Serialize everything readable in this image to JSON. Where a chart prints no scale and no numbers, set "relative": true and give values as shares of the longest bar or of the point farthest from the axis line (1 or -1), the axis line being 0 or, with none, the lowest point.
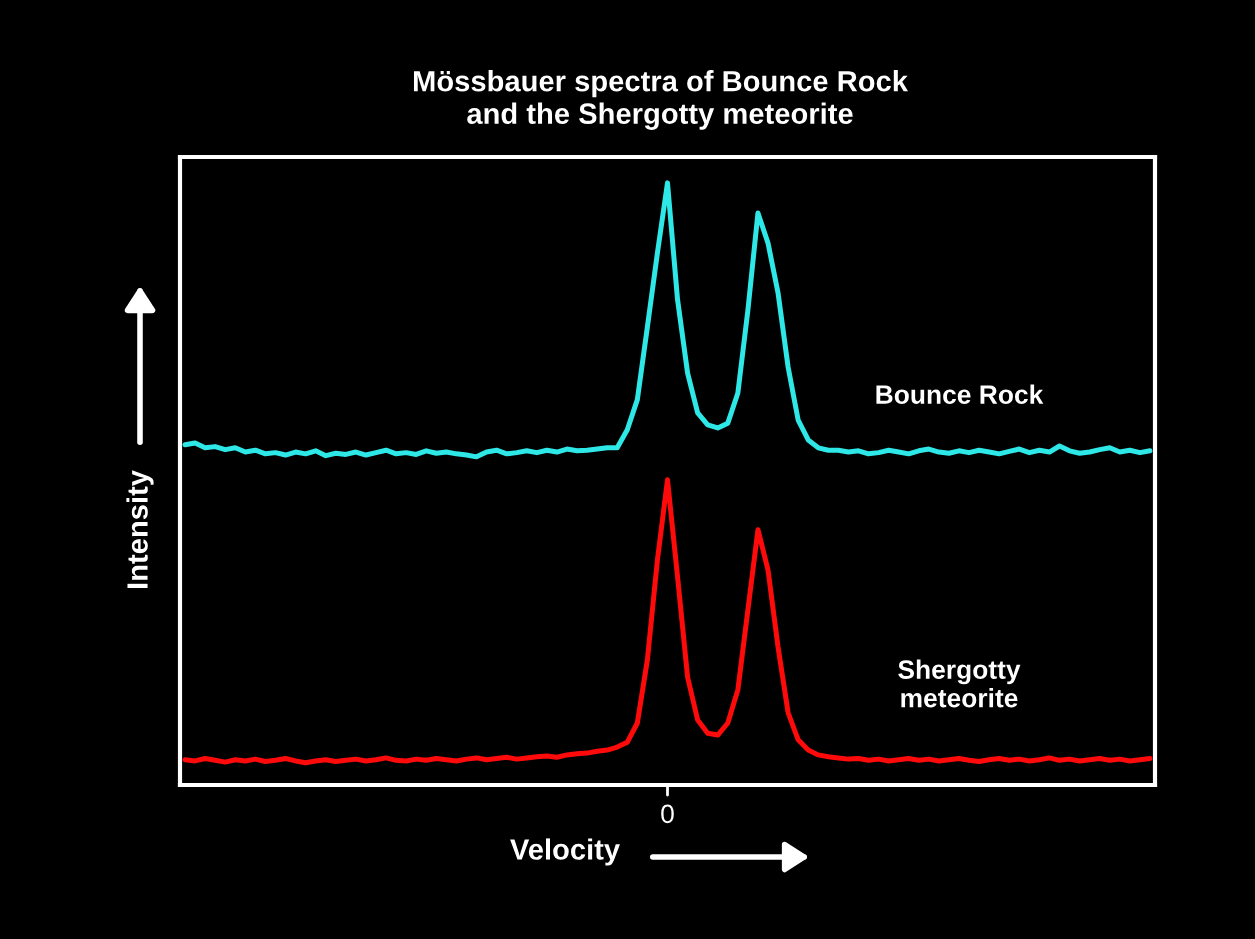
{
  "chart_data": {
    "type": "line",
    "title": "Mössbauer spectra of Bounce Rock\nand the Shergotty meteorite",
    "xlabel": "Velocity",
    "ylabel": "Intensity",
    "relative": true,
    "annotations": [
      "0"
    ],
    "categories": [
      null,
      null,
      null,
      null,
      null,
      null,
      null,
      null,
      null,
      null,
      null,
      null,
      null,
      null,
      null,
      null,
      null,
      null,
      null,
      null,
      null,
      null,
      null,
      null,
      null,
      null,
      null,
      null,
      null,
      null,
      null,
      null,
      null,
      null,
      null,
      null,
      null,
      null,
      null,
      null,
      null,
      null,
      null,
      null,
      null,
      null,
      null,
      null,
      null,
      null,
      null,
      null,
      null,
      null,
      null,
      null,
      null,
      null,
      null,
      null,
      null,
      null,
      null,
      null,
      null,
      null,
      null,
      null,
      null,
      null,
      null,
      null,
      null,
      null,
      null,
      null,
      null,
      null,
      null,
      null,
      null,
      null,
      null,
      null,
      null,
      null,
      null,
      null,
      null,
      null,
      null,
      null,
      null,
      null,
      null,
      null,
      null
    ],
    "series": [
      {
        "name": "Bounce Rock",
        "color": "#2ee8e8",
        "values": [
          0.565,
          0.568,
          0.56,
          0.562,
          0.557,
          0.56,
          0.553,
          0.556,
          0.55,
          0.552,
          0.548,
          0.553,
          0.55,
          0.555,
          0.547,
          0.551,
          0.549,
          0.553,
          0.548,
          0.552,
          0.556,
          0.55,
          0.552,
          0.549,
          0.555,
          0.551,
          0.553,
          0.55,
          0.548,
          0.545,
          0.553,
          0.556,
          0.55,
          0.552,
          0.555,
          0.552,
          0.556,
          0.553,
          0.558,
          0.555,
          0.556,
          0.558,
          0.56,
          0.56,
          0.59,
          0.64,
          0.761,
          0.884,
          1.0,
          0.806,
          0.684,
          0.618,
          0.598,
          0.593,
          0.601,
          0.651,
          0.789,
          0.95,
          0.9,
          0.817,
          0.694,
          0.606,
          0.573,
          0.56,
          0.556,
          0.556,
          0.553,
          0.555,
          0.55,
          0.552,
          0.556,
          0.553,
          0.55,
          0.555,
          0.558,
          0.553,
          0.551,
          0.555,
          0.552,
          0.556,
          0.553,
          0.55,
          0.554,
          0.558,
          0.552,
          0.556,
          0.553,
          0.563,
          0.555,
          0.551,
          0.553,
          0.557,
          0.56,
          0.553,
          0.556,
          0.552,
          0.555
        ]
      },
      {
        "name": "Shergotty\nmeteorite",
        "color": "#ff0a0a",
        "values": [
          0.042,
          0.04,
          0.044,
          0.041,
          0.038,
          0.042,
          0.04,
          0.043,
          0.039,
          0.041,
          0.044,
          0.04,
          0.037,
          0.04,
          0.042,
          0.039,
          0.041,
          0.043,
          0.04,
          0.042,
          0.045,
          0.041,
          0.04,
          0.043,
          0.041,
          0.044,
          0.042,
          0.04,
          0.043,
          0.045,
          0.042,
          0.044,
          0.046,
          0.043,
          0.045,
          0.047,
          0.048,
          0.046,
          0.05,
          0.052,
          0.053,
          0.056,
          0.058,
          0.063,
          0.071,
          0.103,
          0.208,
          0.374,
          0.507,
          0.346,
          0.179,
          0.108,
          0.086,
          0.083,
          0.103,
          0.158,
          0.291,
          0.424,
          0.357,
          0.229,
          0.12,
          0.075,
          0.058,
          0.05,
          0.047,
          0.045,
          0.043,
          0.044,
          0.041,
          0.043,
          0.04,
          0.042,
          0.044,
          0.041,
          0.043,
          0.04,
          0.042,
          0.044,
          0.041,
          0.039,
          0.042,
          0.044,
          0.041,
          0.043,
          0.04,
          0.042,
          0.045,
          0.041,
          0.043,
          0.04,
          0.042,
          0.044,
          0.041,
          0.043,
          0.04,
          0.042,
          0.044
        ]
      }
    ]
  }
}
